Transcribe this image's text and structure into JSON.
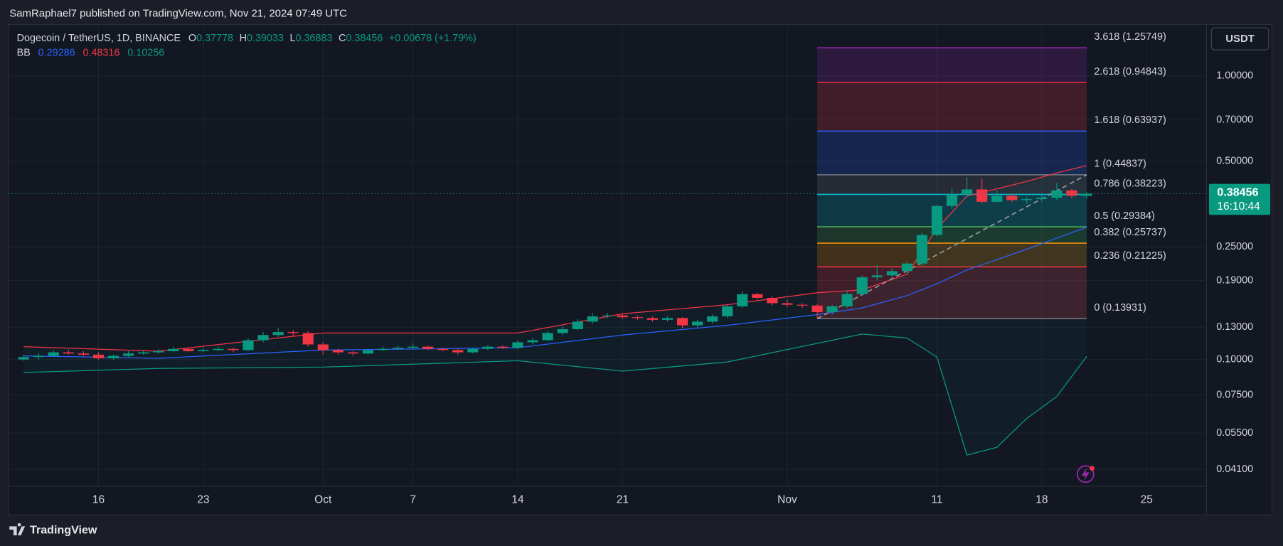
{
  "header": {
    "published": "SamRaphael7 published on TradingView.com, Nov 21, 2024 07:49 UTC"
  },
  "footer": {
    "brand": "TradingView"
  },
  "chart_data": {
    "type": "candlestick",
    "title": "Dogecoin / TetherUS, 1D, BINANCE",
    "legend_labels": {
      "open": "O",
      "high": "H",
      "low": "L",
      "close": "C"
    },
    "change_label": "+0.00678 (+1.79%)",
    "timer": "16:10:44",
    "currency": "USDT",
    "up_color": "#089981",
    "down_color": "#f23645",
    "log_scale": true,
    "grid": true,
    "x": [
      "2024-09-11",
      "2024-09-12",
      "2024-09-13",
      "2024-09-14",
      "2024-09-15",
      "2024-09-16",
      "2024-09-17",
      "2024-09-18",
      "2024-09-19",
      "2024-09-20",
      "2024-09-21",
      "2024-09-22",
      "2024-09-23",
      "2024-09-24",
      "2024-09-25",
      "2024-09-26",
      "2024-09-27",
      "2024-09-28",
      "2024-09-29",
      "2024-09-30",
      "2024-10-01",
      "2024-10-02",
      "2024-10-03",
      "2024-10-04",
      "2024-10-05",
      "2024-10-06",
      "2024-10-07",
      "2024-10-08",
      "2024-10-09",
      "2024-10-10",
      "2024-10-11",
      "2024-10-12",
      "2024-10-13",
      "2024-10-14",
      "2024-10-15",
      "2024-10-16",
      "2024-10-17",
      "2024-10-18",
      "2024-10-19",
      "2024-10-20",
      "2024-10-21",
      "2024-10-22",
      "2024-10-23",
      "2024-10-24",
      "2024-10-25",
      "2024-10-26",
      "2024-10-27",
      "2024-10-28",
      "2024-10-29",
      "2024-10-30",
      "2024-10-31",
      "2024-11-01",
      "2024-11-02",
      "2024-11-03",
      "2024-11-04",
      "2024-11-05",
      "2024-11-06",
      "2024-11-07",
      "2024-11-08",
      "2024-11-09",
      "2024-11-10",
      "2024-11-11",
      "2024-11-12",
      "2024-11-13",
      "2024-11-14",
      "2024-11-15",
      "2024-11-16",
      "2024-11-17",
      "2024-11-18",
      "2024-11-19",
      "2024-11-20",
      "2024-11-21"
    ],
    "open": [
      0.1,
      0.102,
      0.103,
      0.106,
      0.105,
      0.104,
      0.101,
      0.103,
      0.105,
      0.106,
      0.107,
      0.109,
      0.107,
      0.108,
      0.109,
      0.108,
      0.117,
      0.122,
      0.125,
      0.124,
      0.113,
      0.108,
      0.106,
      0.105,
      0.108,
      0.109,
      0.11,
      0.111,
      0.109,
      0.108,
      0.106,
      0.109,
      0.111,
      0.11,
      0.115,
      0.117,
      0.124,
      0.128,
      0.136,
      0.142,
      0.143,
      0.141,
      0.14,
      0.138,
      0.14,
      0.132,
      0.136,
      0.142,
      0.154,
      0.17,
      0.165,
      0.158,
      0.156,
      0.155,
      0.147,
      0.154,
      0.17,
      0.195,
      0.198,
      0.205,
      0.218,
      0.275,
      0.348,
      0.382,
      0.398,
      0.36,
      0.378,
      0.365,
      0.368,
      0.372,
      0.395,
      0.37778
    ],
    "high": [
      0.104,
      0.105,
      0.108,
      0.108,
      0.107,
      0.106,
      0.104,
      0.107,
      0.108,
      0.109,
      0.111,
      0.11,
      0.11,
      0.111,
      0.11,
      0.119,
      0.125,
      0.129,
      0.127,
      0.126,
      0.115,
      0.109,
      0.107,
      0.109,
      0.111,
      0.112,
      0.114,
      0.112,
      0.11,
      0.109,
      0.11,
      0.112,
      0.112,
      0.117,
      0.119,
      0.126,
      0.131,
      0.139,
      0.146,
      0.146,
      0.145,
      0.143,
      0.142,
      0.142,
      0.141,
      0.138,
      0.144,
      0.156,
      0.174,
      0.172,
      0.167,
      0.163,
      0.158,
      0.157,
      0.156,
      0.175,
      0.198,
      0.215,
      0.21,
      0.222,
      0.28,
      0.35,
      0.4,
      0.44,
      0.433,
      0.395,
      0.385,
      0.375,
      0.38,
      0.42,
      0.4,
      0.39033
    ],
    "low": [
      0.099,
      0.1,
      0.102,
      0.104,
      0.103,
      0.1,
      0.1,
      0.102,
      0.104,
      0.105,
      0.106,
      0.106,
      0.106,
      0.107,
      0.106,
      0.107,
      0.115,
      0.12,
      0.121,
      0.111,
      0.104,
      0.104,
      0.103,
      0.104,
      0.107,
      0.108,
      0.109,
      0.108,
      0.107,
      0.104,
      0.105,
      0.108,
      0.109,
      0.109,
      0.113,
      0.116,
      0.122,
      0.127,
      0.134,
      0.14,
      0.139,
      0.138,
      0.136,
      0.136,
      0.129,
      0.13,
      0.134,
      0.14,
      0.152,
      0.162,
      0.155,
      0.153,
      0.152,
      0.14,
      0.144,
      0.152,
      0.168,
      0.19,
      0.195,
      0.2,
      0.214,
      0.272,
      0.34,
      0.375,
      0.355,
      0.358,
      0.36,
      0.355,
      0.36,
      0.365,
      0.37,
      0.36883
    ],
    "close": [
      0.102,
      0.103,
      0.106,
      0.105,
      0.104,
      0.101,
      0.103,
      0.105,
      0.106,
      0.107,
      0.109,
      0.107,
      0.108,
      0.109,
      0.108,
      0.117,
      0.122,
      0.125,
      0.124,
      0.113,
      0.108,
      0.106,
      0.105,
      0.108,
      0.109,
      0.11,
      0.111,
      0.109,
      0.108,
      0.106,
      0.109,
      0.111,
      0.11,
      0.115,
      0.117,
      0.124,
      0.128,
      0.136,
      0.142,
      0.143,
      0.141,
      0.14,
      0.138,
      0.14,
      0.132,
      0.136,
      0.142,
      0.154,
      0.17,
      0.165,
      0.158,
      0.156,
      0.155,
      0.147,
      0.154,
      0.17,
      0.195,
      0.198,
      0.205,
      0.218,
      0.275,
      0.348,
      0.382,
      0.398,
      0.36,
      0.378,
      0.365,
      0.368,
      0.372,
      0.395,
      0.37778,
      0.38456
    ],
    "xlim": [
      "2024-09-10",
      "2024-11-29"
    ],
    "xticks": [
      {
        "value": "2024-09-16",
        "label": "16"
      },
      {
        "value": "2024-09-23",
        "label": "23"
      },
      {
        "value": "2024-10-01",
        "label": "Oct"
      },
      {
        "value": "2024-10-07",
        "label": "7"
      },
      {
        "value": "2024-10-14",
        "label": "14"
      },
      {
        "value": "2024-10-21",
        "label": "21"
      },
      {
        "value": "2024-11-01",
        "label": "Nov"
      },
      {
        "value": "2024-11-11",
        "label": "11"
      },
      {
        "value": "2024-11-18",
        "label": "18"
      },
      {
        "value": "2024-11-25",
        "label": "25"
      }
    ],
    "ylim": [
      0.0357,
      1.519
    ],
    "yticks": [
      {
        "value": 1,
        "label": "1.00000"
      },
      {
        "value": 0.7,
        "label": "0.70000"
      },
      {
        "value": 0.5,
        "label": "0.50000"
      },
      {
        "value": 0.25,
        "label": "0.25000"
      },
      {
        "value": 0.19,
        "label": "0.19000"
      },
      {
        "value": 0.13,
        "label": "0.13000"
      },
      {
        "value": 0.1,
        "label": "0.10000"
      },
      {
        "value": 0.075,
        "label": "0.07500"
      },
      {
        "value": 0.055,
        "label": "0.05500"
      },
      {
        "value": 0.041,
        "label": "0.04100"
      }
    ],
    "bollinger": {
      "name": "BB",
      "x": [
        "2024-09-11",
        "2024-09-20",
        "2024-10-01",
        "2024-10-14",
        "2024-10-21",
        "2024-10-28",
        "2024-11-03",
        "2024-11-06",
        "2024-11-09",
        "2024-11-11",
        "2024-11-13",
        "2024-11-15",
        "2024-11-17",
        "2024-11-19",
        "2024-11-21"
      ],
      "basis": {
        "color": "#2962ff",
        "values": [
          0.103,
          0.101,
          0.108,
          0.11,
          0.122,
          0.132,
          0.144,
          0.152,
          0.168,
          0.185,
          0.207,
          0.225,
          0.245,
          0.268,
          0.29286
        ]
      },
      "upper": {
        "color": "#f23645",
        "values": [
          0.111,
          0.107,
          0.124,
          0.124,
          0.145,
          0.156,
          0.172,
          0.176,
          0.2,
          0.29,
          0.377,
          0.4,
          0.425,
          0.455,
          0.48316
        ]
      },
      "lower": {
        "color": "#089981",
        "values": [
          0.09,
          0.093,
          0.094,
          0.099,
          0.091,
          0.098,
          0.114,
          0.123,
          0.119,
          0.102,
          0.046,
          0.049,
          0.062,
          0.074,
          0.10256
        ]
      }
    },
    "fib": {
      "start": "2024-11-03",
      "end": "2024-11-21",
      "levels": [
        {
          "label": "3.618 (1.25749)",
          "value": 1.25749,
          "color": "#9c27b0"
        },
        {
          "label": "2.618 (0.94843)",
          "value": 0.94843,
          "color": "#f23645"
        },
        {
          "label": "1.618 (0.63937)",
          "value": 0.63937,
          "color": "#2962ff"
        },
        {
          "label": "1 (0.44837)",
          "value": 0.44837,
          "color": "#787b86"
        },
        {
          "label": "0.786 (0.38223)",
          "value": 0.38223,
          "color": "#00bcd4"
        },
        {
          "label": "0.5 (0.29384)",
          "value": 0.29384,
          "color": "#4caf50"
        },
        {
          "label": "0.382 (0.25737)",
          "value": 0.25737,
          "color": "#ff9800"
        },
        {
          "label": "0.236 (0.21225)",
          "value": 0.21225,
          "color": "#f23645"
        },
        {
          "label": "0 (0.13931)",
          "value": 0.13931,
          "color": "#787b86"
        }
      ]
    }
  }
}
